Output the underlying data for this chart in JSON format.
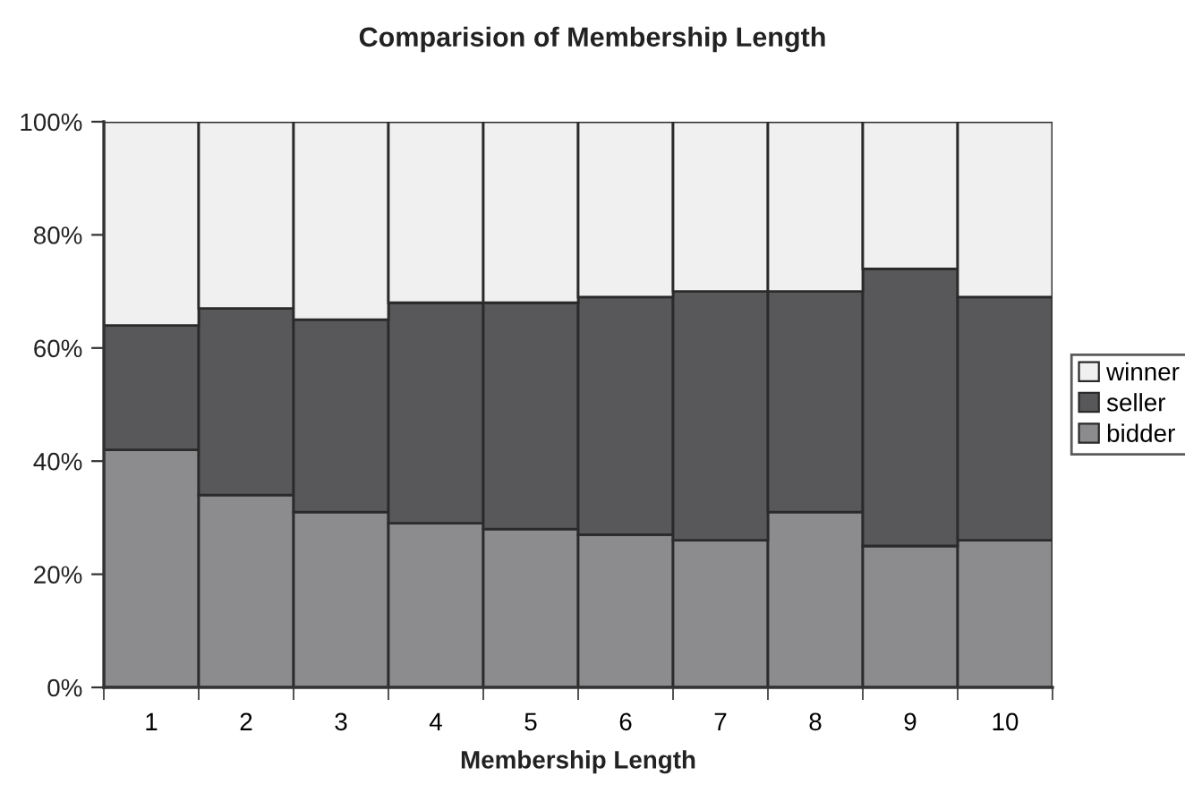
{
  "chart_data": {
    "type": "bar",
    "title": "Comparision of Membership Length",
    "xlabel": "Membership Length",
    "categories": [
      "1",
      "2",
      "3",
      "4",
      "5",
      "6",
      "7",
      "8",
      "9",
      "10"
    ],
    "stacked": true,
    "legend": "right",
    "ylim": [
      0,
      100
    ],
    "yticks": [
      {
        "value": 0,
        "label": "0%"
      },
      {
        "value": 20,
        "label": "20%"
      },
      {
        "value": 40,
        "label": "40%"
      },
      {
        "value": 60,
        "label": "60%"
      },
      {
        "value": 80,
        "label": "80%"
      },
      {
        "value": 100,
        "label": "100%"
      }
    ],
    "series": [
      {
        "name": "bidder",
        "color": "#8c8c8f",
        "values": [
          42,
          34,
          31,
          29,
          28,
          27,
          26,
          31,
          25,
          26
        ]
      },
      {
        "name": "seller",
        "color": "#58585a",
        "values": [
          22,
          33,
          34,
          39,
          40,
          42,
          44,
          39,
          49,
          43
        ]
      },
      {
        "name": "winner",
        "color": "#f0f0f0",
        "values": [
          36,
          33,
          35,
          32,
          32,
          31,
          30,
          30,
          26,
          31
        ]
      }
    ]
  }
}
